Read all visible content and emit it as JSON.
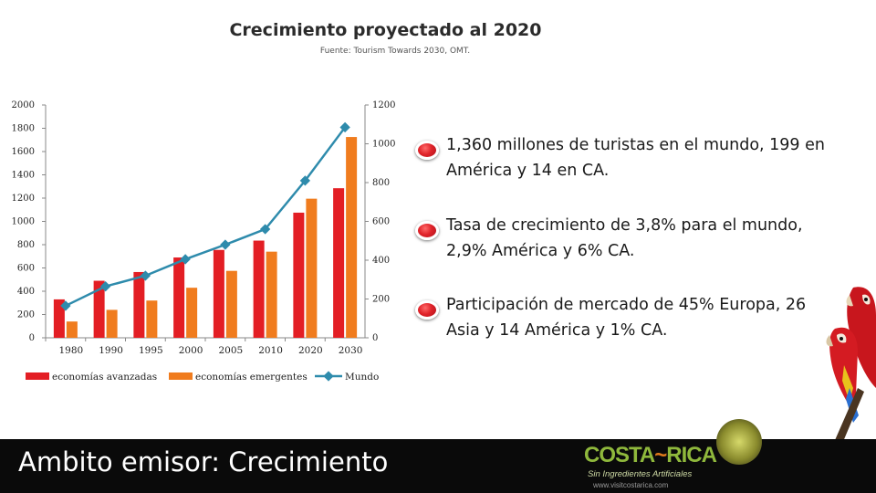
{
  "chart_data": {
    "type": "bar",
    "title": "Crecimiento proyectado al 2020",
    "subtitle": "Fuente: Tourism Towards 2030, OMT.",
    "categories": [
      "1980",
      "1990",
      "1995",
      "2000",
      "2005",
      "2010",
      "2020",
      "2030"
    ],
    "series": [
      {
        "name": "economías avanzadas",
        "type": "bar",
        "axis": "left",
        "color": "#e31e24",
        "values": [
          330,
          490,
          565,
          690,
          755,
          835,
          1075,
          1285
        ]
      },
      {
        "name": "economías emergentes",
        "type": "bar",
        "axis": "left",
        "color": "#f07c1e",
        "values": [
          140,
          240,
          320,
          430,
          575,
          740,
          1195,
          1725
        ]
      },
      {
        "name": "Mundo",
        "type": "line",
        "axis": "right",
        "color": "#2e8bac",
        "values": [
          165,
          265,
          320,
          405,
          480,
          560,
          810,
          1085
        ]
      }
    ],
    "y_left": {
      "range": [
        0,
        2000
      ],
      "ticks": [
        0,
        200,
        400,
        600,
        800,
        1000,
        1200,
        1400,
        1600,
        1800,
        2000
      ]
    },
    "y_right": {
      "range": [
        0,
        1200
      ],
      "ticks": [
        0,
        200,
        400,
        600,
        800,
        1000,
        1200
      ]
    },
    "grid": false,
    "legend_position": "bottom"
  },
  "bullets": [
    "1,360 millones de turistas en el mundo, 199 en América y 14 en CA.",
    "Tasa de crecimiento de 3,8% para el mundo, 2,9%  América y 6% CA.",
    "Participación de mercado de 45% Europa, 26 Asia y 14 América y 1% CA."
  ],
  "footer": {
    "title": "Ambito emisor: Crecimiento",
    "logo": {
      "text_left": "COSTA",
      "text_right": "RICA",
      "tagline": "Sin Ingredientes Artificiales",
      "url": "www.visitcostarica.com"
    }
  },
  "colors": {
    "footer_bg": "#0a0a0a",
    "bullet_dot": "#e0242a",
    "logo_green": "#8fb83c"
  }
}
